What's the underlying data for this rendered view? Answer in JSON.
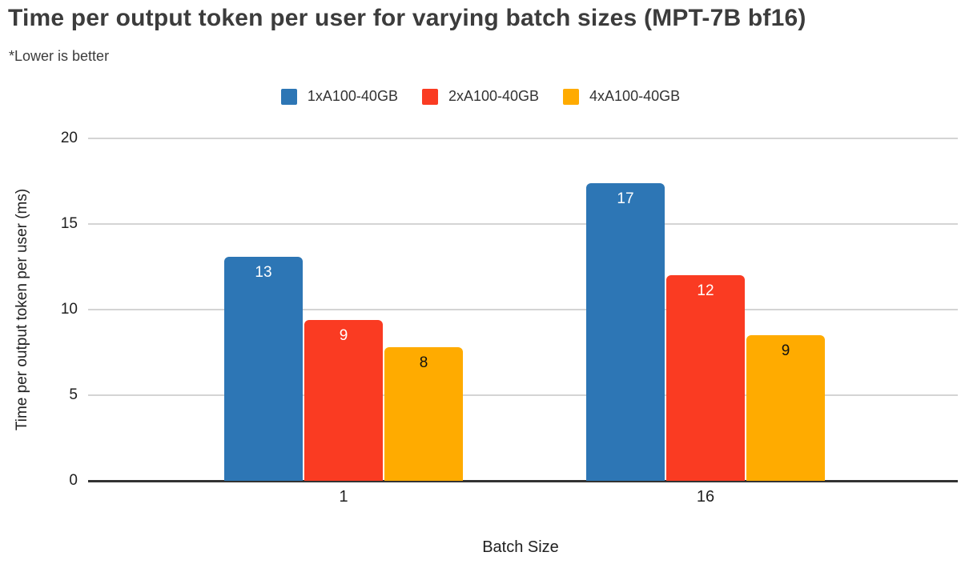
{
  "chart_data": {
    "type": "bar",
    "title": "Time per output token per user for varying batch sizes (MPT-7B bf16)",
    "subtitle": "*Lower is better",
    "xlabel": "Batch Size",
    "ylabel": "Time per output token per user (ms)",
    "categories": [
      "1",
      "16"
    ],
    "series": [
      {
        "name": "1xA100-40GB",
        "color": "#2d76b5",
        "label_color": "#ffffff",
        "values": [
          13.1,
          17.4
        ],
        "labels": [
          "13",
          "17"
        ]
      },
      {
        "name": "2xA100-40GB",
        "color": "#fa3b22",
        "label_color": "#ffffff",
        "values": [
          9.4,
          12.0
        ],
        "labels": [
          "9",
          "12"
        ]
      },
      {
        "name": "4xA100-40GB",
        "color": "#ffab00",
        "label_color": "#111111",
        "values": [
          7.8,
          8.5
        ],
        "labels": [
          "8",
          "9"
        ]
      }
    ],
    "y_ticks": [
      0,
      5,
      10,
      15,
      20
    ],
    "ylim": [
      0,
      20
    ],
    "grid": true,
    "legend_position": "top"
  },
  "colors": {
    "gridline": "#d4d4d4",
    "baseline": "#333333",
    "title_text": "#3c3c3c",
    "axis_text": "#202020"
  }
}
